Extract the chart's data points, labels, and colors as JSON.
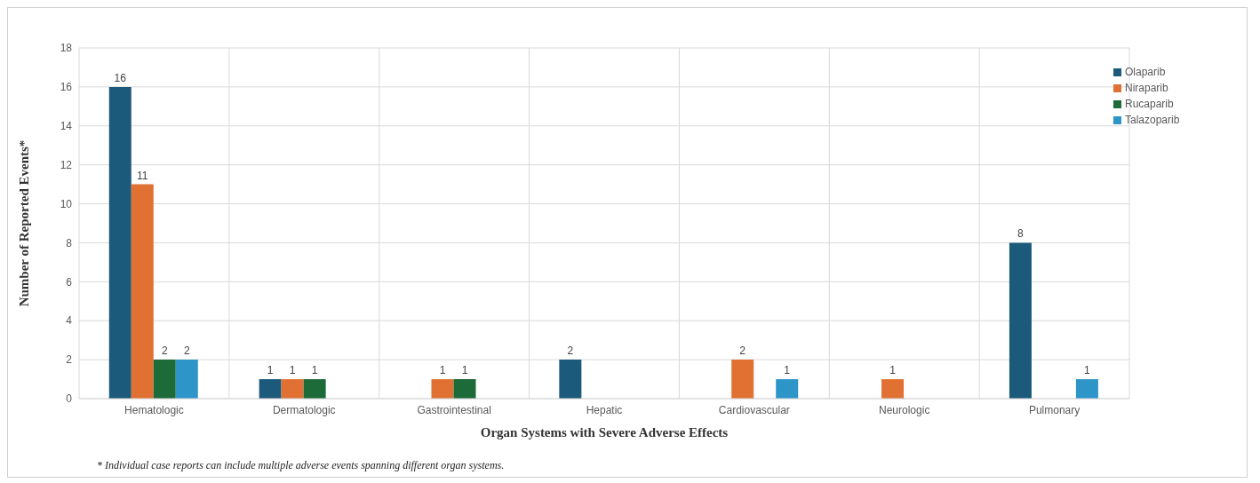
{
  "chart_data": {
    "type": "bar",
    "xlabel": "Organ Systems with Severe Adverse Effects",
    "ylabel": "Number of Reported Events*",
    "categories": [
      "Hematologic",
      "Dermatologic",
      "Gastrointestinal",
      "Hepatic",
      "Cardiovascular",
      "Neurologic",
      "Pulmonary"
    ],
    "series": [
      {
        "name": "Olaparib",
        "color": "#1b5a7b",
        "values": [
          16,
          1,
          null,
          2,
          null,
          null,
          8
        ]
      },
      {
        "name": "Niraparib",
        "color": "#e07133",
        "values": [
          11,
          1,
          1,
          null,
          2,
          1,
          null
        ]
      },
      {
        "name": "Rucaparib",
        "color": "#1e6b3a",
        "values": [
          2,
          1,
          1,
          null,
          null,
          null,
          null
        ]
      },
      {
        "name": "Talazoparib",
        "color": "#2e95c9",
        "values": [
          2,
          null,
          null,
          null,
          1,
          null,
          1
        ]
      }
    ],
    "ylim": [
      0,
      18
    ],
    "yticks": [
      0,
      2,
      4,
      6,
      8,
      10,
      12,
      14,
      16,
      18
    ],
    "grid": true,
    "legend": "top right",
    "data_labels": true,
    "annotations": [
      "* Individual case reports can include multiple adverse events spanning different organ systems."
    ]
  }
}
